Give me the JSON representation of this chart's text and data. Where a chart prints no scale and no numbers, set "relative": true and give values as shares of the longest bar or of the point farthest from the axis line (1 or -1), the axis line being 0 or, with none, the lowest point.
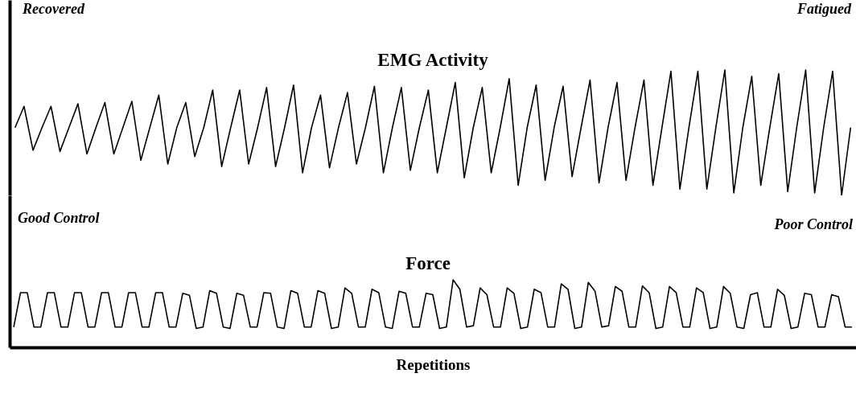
{
  "chart_data": [
    {
      "type": "line",
      "title": "EMG Activity",
      "annotations": [
        "Recovered",
        "Fatigued"
      ],
      "relative": true,
      "categories": [
        null,
        null,
        null,
        null,
        null,
        null,
        null,
        null,
        null,
        null,
        null,
        null,
        null,
        null,
        null,
        null,
        null,
        null,
        null,
        null,
        null,
        null,
        null,
        null,
        null,
        null,
        null,
        null,
        null,
        null,
        null,
        null,
        null,
        null,
        null,
        null,
        null,
        null,
        null,
        null,
        null,
        null,
        null,
        null,
        null,
        null,
        null,
        null,
        null,
        null,
        null,
        null,
        null,
        null,
        null,
        null,
        null,
        null,
        null,
        null,
        null,
        null,
        null,
        null,
        null,
        null,
        null,
        null,
        null,
        null,
        null,
        null,
        null,
        null,
        null,
        null,
        null,
        null,
        null,
        null,
        null,
        null,
        null,
        null,
        null,
        null,
        null,
        null,
        null,
        null,
        null,
        null,
        null,
        null
      ],
      "series": [
        {
          "color": "#000000",
          "values": [
            0.54,
            0.71,
            0.36,
            0.54,
            0.71,
            0.35,
            0.54,
            0.73,
            0.33,
            0.54,
            0.74,
            0.33,
            0.54,
            0.75,
            0.28,
            0.54,
            0.8,
            0.25,
            0.54,
            0.74,
            0.31,
            0.54,
            0.84,
            0.23,
            0.54,
            0.84,
            0.25,
            0.54,
            0.86,
            0.23,
            0.54,
            0.88,
            0.18,
            0.54,
            0.8,
            0.22,
            0.54,
            0.82,
            0.25,
            0.54,
            0.87,
            0.18,
            0.54,
            0.86,
            0.2,
            0.54,
            0.84,
            0.18,
            0.54,
            0.9,
            0.14,
            0.54,
            0.86,
            0.18,
            0.54,
            0.93,
            0.08,
            0.54,
            0.88,
            0.12,
            0.54,
            0.87,
            0.15,
            0.54,
            0.92,
            0.1,
            0.54,
            0.9,
            0.12,
            0.54,
            0.92,
            0.08,
            0.54,
            0.99,
            0.05,
            0.54,
            0.99,
            0.05,
            0.54,
            1.0,
            0.02,
            0.54,
            0.95,
            0.08,
            0.54,
            0.97,
            0.03,
            0.54,
            1.0,
            0.02,
            0.54,
            0.99,
            0.0,
            0.54
          ]
        }
      ]
    },
    {
      "type": "line",
      "title": "Force",
      "xlabel": "Repetitions",
      "annotations": [
        "Good Control",
        "Poor Control"
      ],
      "relative": true,
      "categories": [
        null,
        null,
        null,
        null,
        null,
        null,
        null,
        null,
        null,
        null,
        null,
        null,
        null,
        null,
        null,
        null,
        null,
        null,
        null,
        null,
        null,
        null,
        null,
        null,
        null,
        null,
        null,
        null,
        null,
        null,
        null,
        null,
        null,
        null,
        null,
        null,
        null,
        null,
        null,
        null,
        null,
        null,
        null,
        null,
        null,
        null,
        null,
        null,
        null,
        null,
        null,
        null,
        null,
        null,
        null,
        null,
        null,
        null,
        null,
        null,
        null,
        null,
        null,
        null,
        null,
        null,
        null,
        null,
        null,
        null,
        null,
        null,
        null,
        null,
        null,
        null,
        null,
        null,
        null,
        null,
        null,
        null,
        null,
        null,
        null,
        null,
        null,
        null,
        null,
        null,
        null,
        null,
        null,
        null,
        null,
        null,
        null,
        null,
        null,
        null,
        null,
        null,
        null,
        null,
        null,
        null,
        null,
        null,
        null,
        null,
        null,
        null,
        null,
        null,
        null,
        null,
        null,
        null,
        null,
        null,
        null,
        null,
        null,
        null,
        null
      ],
      "series": [
        {
          "color": "#000000",
          "values": [
            0.3,
            0.81,
            0.81,
            0.3,
            0.3,
            0.81,
            0.81,
            0.3,
            0.3,
            0.81,
            0.81,
            0.3,
            0.3,
            0.81,
            0.81,
            0.3,
            0.3,
            0.81,
            0.81,
            0.3,
            0.3,
            0.81,
            0.81,
            0.3,
            0.3,
            0.8,
            0.77,
            0.28,
            0.3,
            0.84,
            0.8,
            0.3,
            0.28,
            0.8,
            0.77,
            0.3,
            0.3,
            0.81,
            0.8,
            0.3,
            0.28,
            0.84,
            0.8,
            0.3,
            0.3,
            0.84,
            0.8,
            0.28,
            0.3,
            0.88,
            0.8,
            0.3,
            0.3,
            0.86,
            0.81,
            0.3,
            0.28,
            0.83,
            0.8,
            0.3,
            0.3,
            0.8,
            0.78,
            0.28,
            0.3,
            1.0,
            0.86,
            0.3,
            0.32,
            0.88,
            0.78,
            0.3,
            0.3,
            0.88,
            0.8,
            0.28,
            0.3,
            0.86,
            0.81,
            0.3,
            0.3,
            0.94,
            0.86,
            0.28,
            0.3,
            0.96,
            0.83,
            0.3,
            0.32,
            0.9,
            0.83,
            0.3,
            0.3,
            0.91,
            0.81,
            0.28,
            0.3,
            0.9,
            0.81,
            0.3,
            0.3,
            0.88,
            0.81,
            0.28,
            0.3,
            0.9,
            0.8,
            0.3,
            0.28,
            0.78,
            0.81,
            0.3,
            0.3,
            0.86,
            0.77,
            0.28,
            0.3,
            0.8,
            0.78,
            0.3,
            0.3,
            0.78,
            0.75,
            0.3,
            0.3
          ]
        }
      ]
    }
  ]
}
